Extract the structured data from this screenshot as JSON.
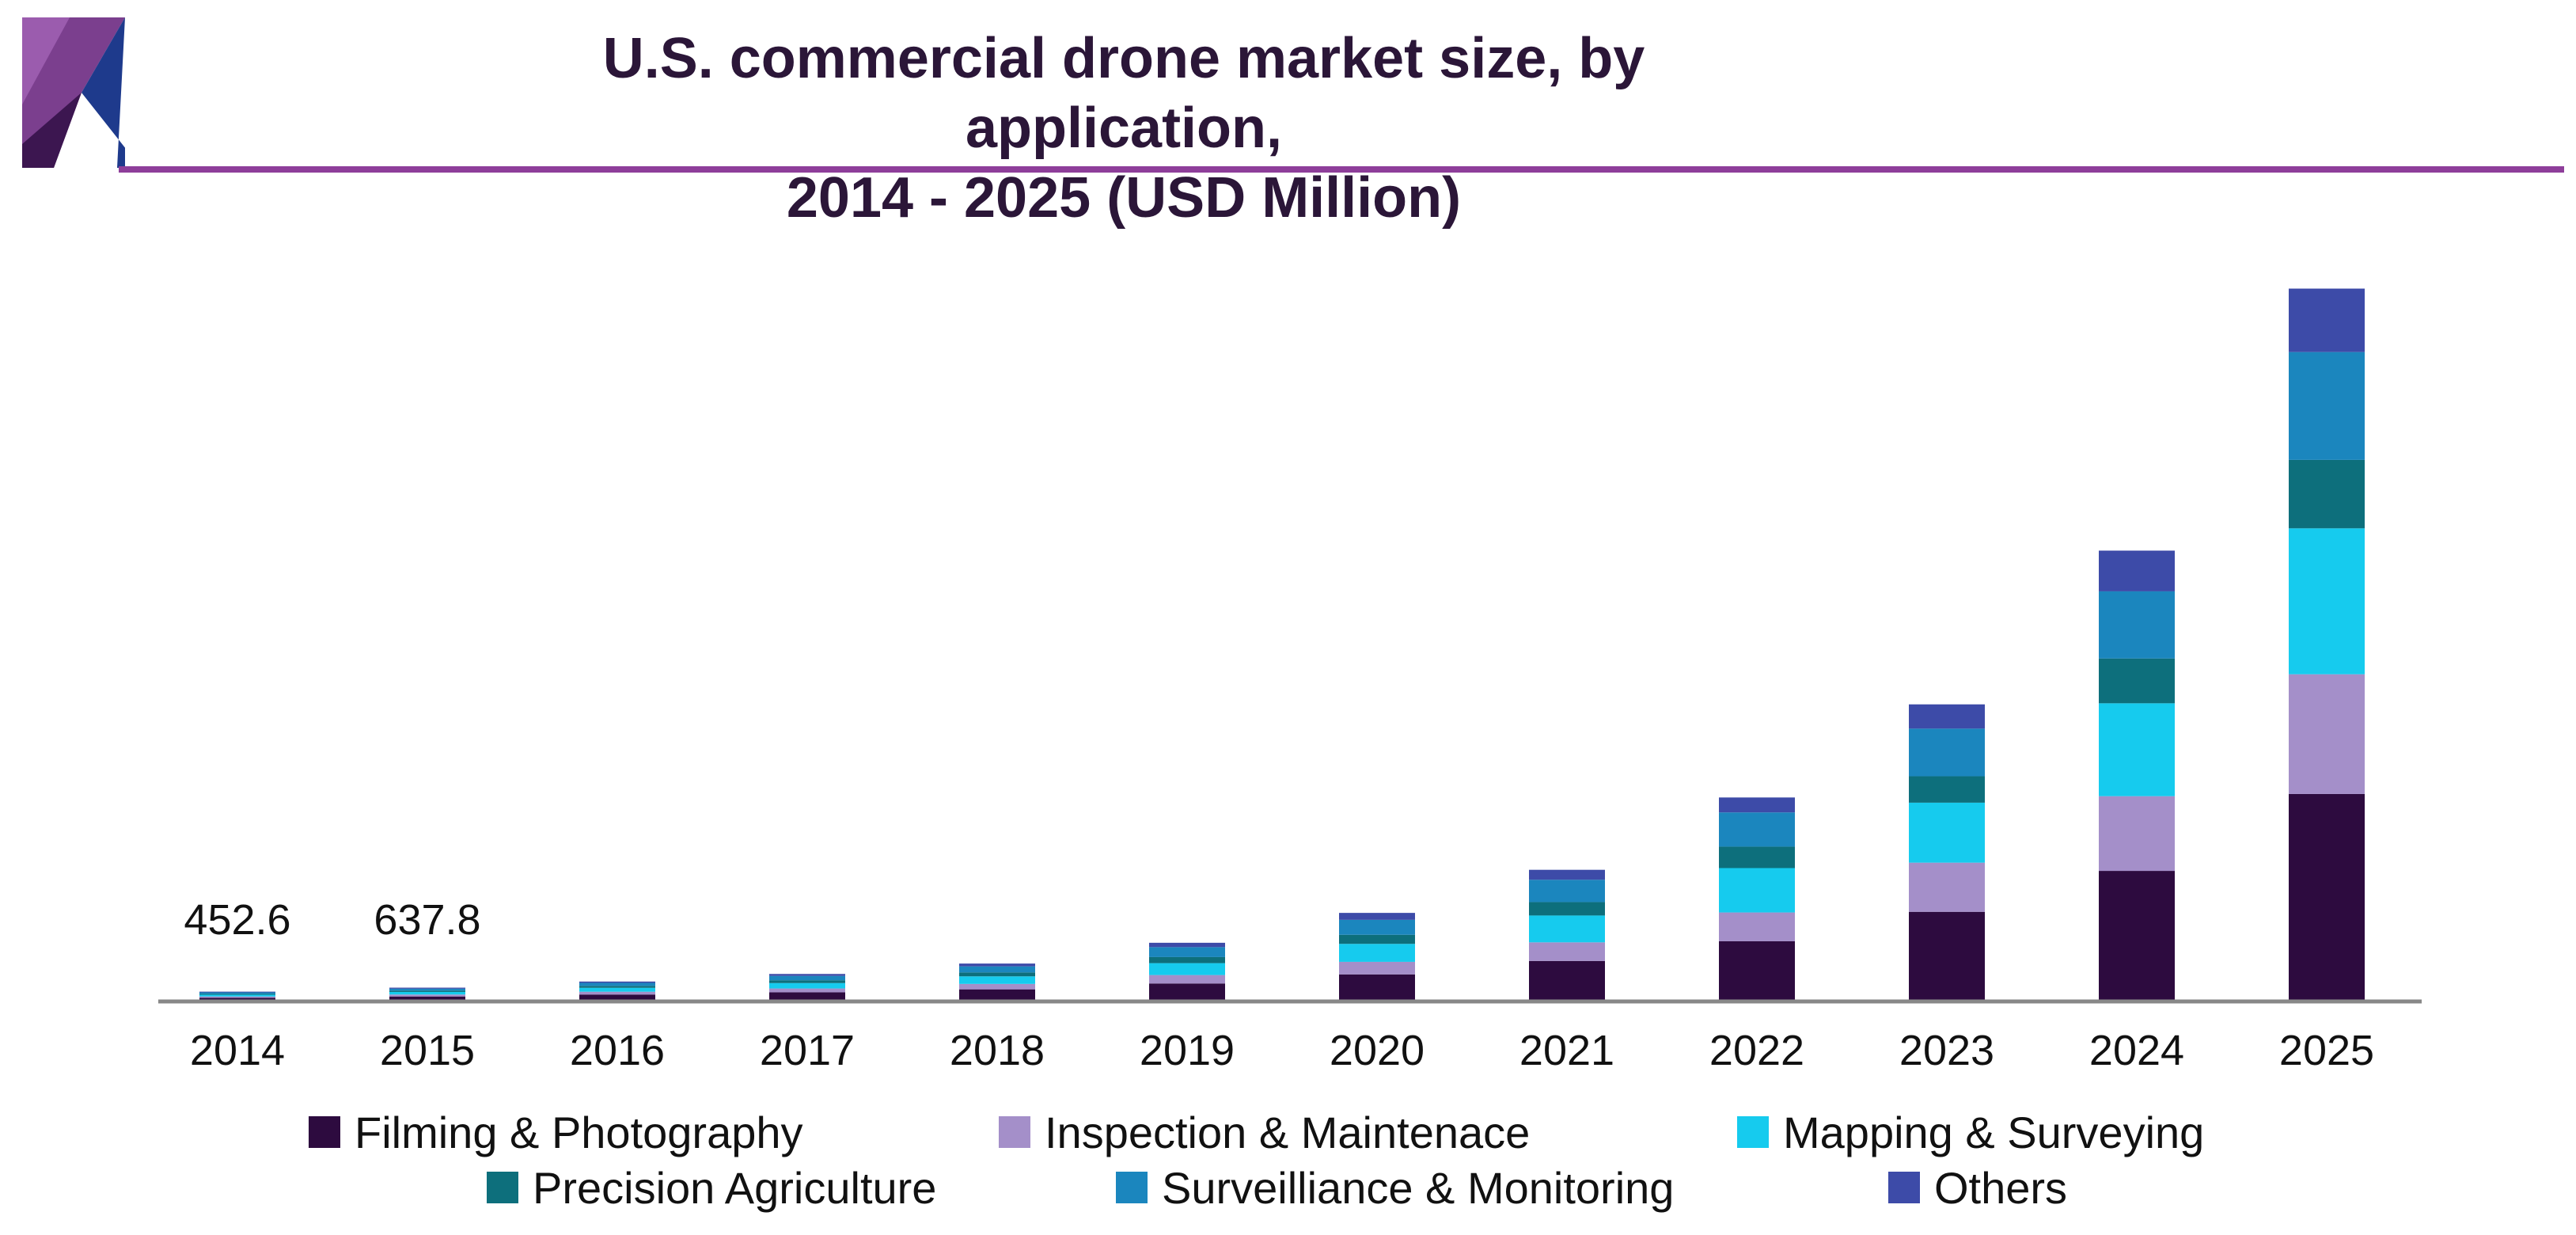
{
  "title_lines": [
    "U.S. commercial drone market size, by application,",
    "2014 - 2025 (USD Million)"
  ],
  "chart_data": {
    "type": "bar",
    "stacked": true,
    "title": "U.S. commercial drone market size, by application, 2014 - 2025 (USD Million)",
    "xlabel": "",
    "ylabel": "",
    "categories": [
      "2014",
      "2015",
      "2016",
      "2017",
      "2018",
      "2019",
      "2020",
      "2021",
      "2022",
      "2023",
      "2024",
      "2025"
    ],
    "series": [
      {
        "name": "Filming & Photography",
        "color": "#2d0b3f",
        "values": [
          170,
          230,
          320,
          420,
          560,
          830,
          1250,
          1870,
          2780,
          4140,
          6030,
          9580
        ]
      },
      {
        "name": "Inspection & Maintenace",
        "color": "#a48fc9",
        "values": [
          60,
          90,
          130,
          180,
          250,
          390,
          580,
          860,
          1330,
          2270,
          3450,
          5530
        ]
      },
      {
        "name": "Mapping & Surveying",
        "color": "#16cbee",
        "values": [
          80,
          120,
          180,
          250,
          350,
          550,
          830,
          1240,
          2050,
          2770,
          4290,
          6740
        ]
      },
      {
        "name": "Precision Agriculture",
        "color": "#0d6f7c",
        "values": [
          40,
          60,
          90,
          130,
          180,
          280,
          420,
          620,
          990,
          1220,
          2070,
          3160
        ]
      },
      {
        "name": "Surveilliance & Monitoring",
        "color": "#1b86be",
        "values": [
          70,
          90,
          140,
          200,
          280,
          460,
          690,
          1030,
          1580,
          2200,
          3100,
          4980
        ]
      },
      {
        "name": "Others",
        "color": "#3d4ba8",
        "values": [
          32.6,
          47.8,
          60,
          90,
          130,
          200,
          320,
          460,
          690,
          1120,
          1880,
          2930
        ]
      }
    ],
    "data_labels": [
      {
        "category": "2014",
        "text": "452.6"
      },
      {
        "category": "2015",
        "text": "637.8"
      }
    ],
    "ylim": [
      0,
      34000
    ],
    "grid": false,
    "legend": "bottom"
  },
  "colors": {
    "title": "#2b1638",
    "accent_rule": "#8e3e9a",
    "axis": "#888888"
  }
}
